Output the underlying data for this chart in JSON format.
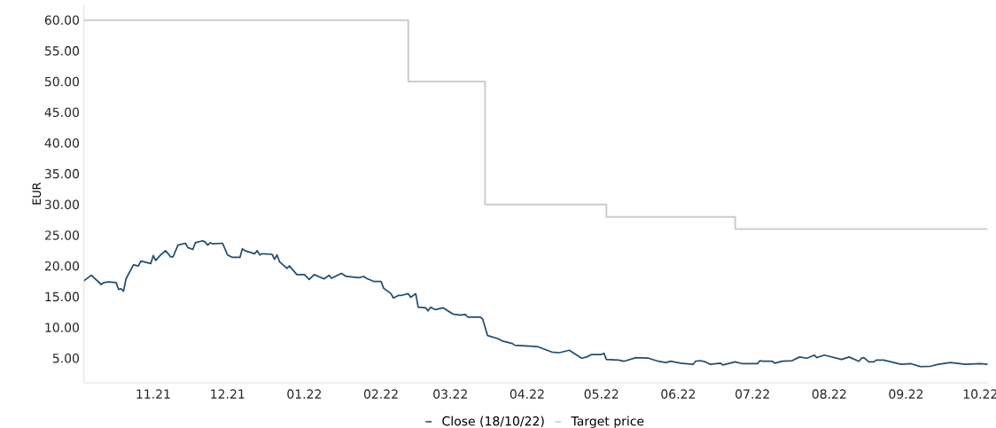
{
  "chart_data": {
    "type": "line",
    "ylabel": "EUR",
    "legend": "bottom",
    "xlim": [
      "2021-10-18",
      "2022-10-18"
    ],
    "ylim": [
      1,
      62.5
    ],
    "xticks": [
      {
        "value": "2021-11-15",
        "label": "11.21"
      },
      {
        "value": "2021-12-15",
        "label": "12.21"
      },
      {
        "value": "2022-01-15",
        "label": "01.22"
      },
      {
        "value": "2022-02-15",
        "label": "02.22"
      },
      {
        "value": "2022-03-15",
        "label": "03.22"
      },
      {
        "value": "2022-04-15",
        "label": "04.22"
      },
      {
        "value": "2022-05-15",
        "label": "05.22"
      },
      {
        "value": "2022-06-15",
        "label": "06.22"
      },
      {
        "value": "2022-07-15",
        "label": "07.22"
      },
      {
        "value": "2022-08-15",
        "label": "08.22"
      },
      {
        "value": "2022-09-15",
        "label": "09.22"
      },
      {
        "value": "2022-10-15",
        "label": "10.22"
      }
    ],
    "yticks": [
      {
        "value": 5,
        "label": "5.00"
      },
      {
        "value": 10,
        "label": "10.00"
      },
      {
        "value": 15,
        "label": "15.00"
      },
      {
        "value": 20,
        "label": "20.00"
      },
      {
        "value": 25,
        "label": "25.00"
      },
      {
        "value": 30,
        "label": "30.00"
      },
      {
        "value": 35,
        "label": "35.00"
      },
      {
        "value": 40,
        "label": "40.00"
      },
      {
        "value": 45,
        "label": "45.00"
      },
      {
        "value": 50,
        "label": "50.00"
      },
      {
        "value": 55,
        "label": "55.00"
      },
      {
        "value": 60,
        "label": "60.00"
      }
    ],
    "series": [
      {
        "name": "Close (18/10/22)",
        "type": "line",
        "color": "#244c6e",
        "x": [
          "2021-10-18",
          "2021-10-21",
          "2021-10-25",
          "2021-10-26",
          "2021-10-28",
          "2021-10-31",
          "2021-11-01",
          "2021-11-02",
          "2021-11-03",
          "2021-11-04",
          "2021-11-07",
          "2021-11-09",
          "2021-11-10",
          "2021-11-14",
          "2021-11-15",
          "2021-11-16",
          "2021-11-18",
          "2021-11-20",
          "2021-11-22",
          "2021-11-23",
          "2021-11-25",
          "2021-11-28",
          "2021-11-29",
          "2021-12-01",
          "2021-12-02",
          "2021-12-05",
          "2021-12-06",
          "2021-12-07",
          "2021-12-08",
          "2021-12-09",
          "2021-12-13",
          "2021-12-15",
          "2021-12-17",
          "2021-12-20",
          "2021-12-21",
          "2021-12-22",
          "2021-12-26",
          "2021-12-27",
          "2021-12-28",
          "2021-12-29",
          "2022-01-02",
          "2022-01-03",
          "2022-01-04",
          "2022-01-05",
          "2022-01-08",
          "2022-01-09",
          "2022-01-12",
          "2022-01-15",
          "2022-01-17",
          "2022-01-19",
          "2022-01-23",
          "2022-01-25",
          "2022-01-26",
          "2022-01-30",
          "2022-02-01",
          "2022-02-06",
          "2022-02-08",
          "2022-02-09",
          "2022-02-12",
          "2022-02-15",
          "2022-02-16",
          "2022-02-19",
          "2022-02-20",
          "2022-02-22",
          "2022-02-23",
          "2022-02-26",
          "2022-02-27",
          "2022-03-01",
          "2022-03-02",
          "2022-03-05",
          "2022-03-06",
          "2022-03-07",
          "2022-03-09",
          "2022-03-12",
          "2022-03-16",
          "2022-03-19",
          "2022-03-21",
          "2022-03-22",
          "2022-03-27",
          "2022-03-28",
          "2022-03-30",
          "2022-04-03",
          "2022-04-05",
          "2022-04-09",
          "2022-04-10",
          "2022-04-19",
          "2022-04-25",
          "2022-04-28",
          "2022-05-02",
          "2022-05-07",
          "2022-05-09",
          "2022-05-11",
          "2022-05-15",
          "2022-05-16",
          "2022-05-17",
          "2022-05-22",
          "2022-05-24",
          "2022-05-29",
          "2022-06-03",
          "2022-06-07",
          "2022-06-10",
          "2022-06-12",
          "2022-06-16",
          "2022-06-21",
          "2022-06-22",
          "2022-06-24",
          "2022-06-26",
          "2022-06-28",
          "2022-07-02",
          "2022-07-03",
          "2022-07-08",
          "2022-07-11",
          "2022-07-17",
          "2022-07-18",
          "2022-07-19",
          "2022-07-23",
          "2022-07-24",
          "2022-07-27",
          "2022-07-31",
          "2022-08-03",
          "2022-08-06",
          "2022-08-09",
          "2022-08-10",
          "2022-08-13",
          "2022-08-20",
          "2022-08-23",
          "2022-08-27",
          "2022-08-28",
          "2022-08-29",
          "2022-08-31",
          "2022-09-02",
          "2022-09-03",
          "2022-09-06",
          "2022-09-13",
          "2022-09-17",
          "2022-09-21",
          "2022-09-25",
          "2022-09-28",
          "2022-10-03",
          "2022-10-09",
          "2022-10-15",
          "2022-10-18"
        ],
        "values": [
          17.6,
          18.5,
          17.0,
          17.3,
          17.4,
          17.3,
          16.2,
          16.3,
          15.9,
          17.9,
          20.2,
          20.0,
          20.8,
          20.4,
          21.7,
          20.9,
          21.8,
          22.5,
          21.5,
          21.5,
          23.4,
          23.7,
          23.0,
          22.7,
          23.8,
          24.1,
          23.9,
          23.4,
          23.8,
          23.6,
          23.7,
          21.8,
          21.4,
          21.4,
          22.8,
          22.5,
          22.0,
          22.5,
          21.8,
          22.0,
          21.9,
          21.1,
          21.8,
          20.7,
          19.6,
          20.0,
          18.6,
          18.6,
          17.8,
          18.6,
          17.9,
          18.5,
          18.0,
          18.8,
          18.3,
          18.1,
          18.3,
          18.0,
          17.5,
          17.5,
          16.4,
          15.5,
          14.8,
          15.2,
          15.2,
          15.5,
          14.9,
          15.5,
          13.3,
          13.2,
          12.7,
          13.3,
          12.9,
          13.2,
          12.2,
          12.0,
          12.1,
          11.7,
          11.7,
          11.4,
          8.7,
          8.2,
          7.8,
          7.4,
          7.1,
          6.9,
          6.0,
          5.9,
          6.3,
          5.0,
          5.2,
          5.6,
          5.6,
          5.8,
          4.8,
          4.7,
          4.5,
          5.1,
          5.0,
          4.5,
          4.3,
          4.5,
          4.2,
          4.0,
          4.5,
          4.6,
          4.4,
          4.0,
          4.2,
          3.9,
          4.4,
          4.1,
          4.1,
          4.6,
          4.5,
          4.5,
          4.2,
          4.5,
          4.6,
          5.2,
          5.0,
          5.5,
          5.1,
          5.5,
          4.8,
          5.2,
          4.5,
          5.0,
          5.1,
          4.4,
          4.4,
          4.7,
          4.7,
          4.0,
          4.1,
          3.6,
          3.7,
          4.0,
          4.3,
          4.0,
          4.1,
          4.0
        ]
      },
      {
        "name": "Target price",
        "type": "step",
        "color": "#cccccc",
        "x": [
          "2021-10-18",
          "2022-02-26",
          "2022-03-29",
          "2022-05-17",
          "2022-07-08",
          "2022-10-18"
        ],
        "values": [
          60,
          50,
          30,
          28,
          26,
          26
        ]
      }
    ]
  }
}
